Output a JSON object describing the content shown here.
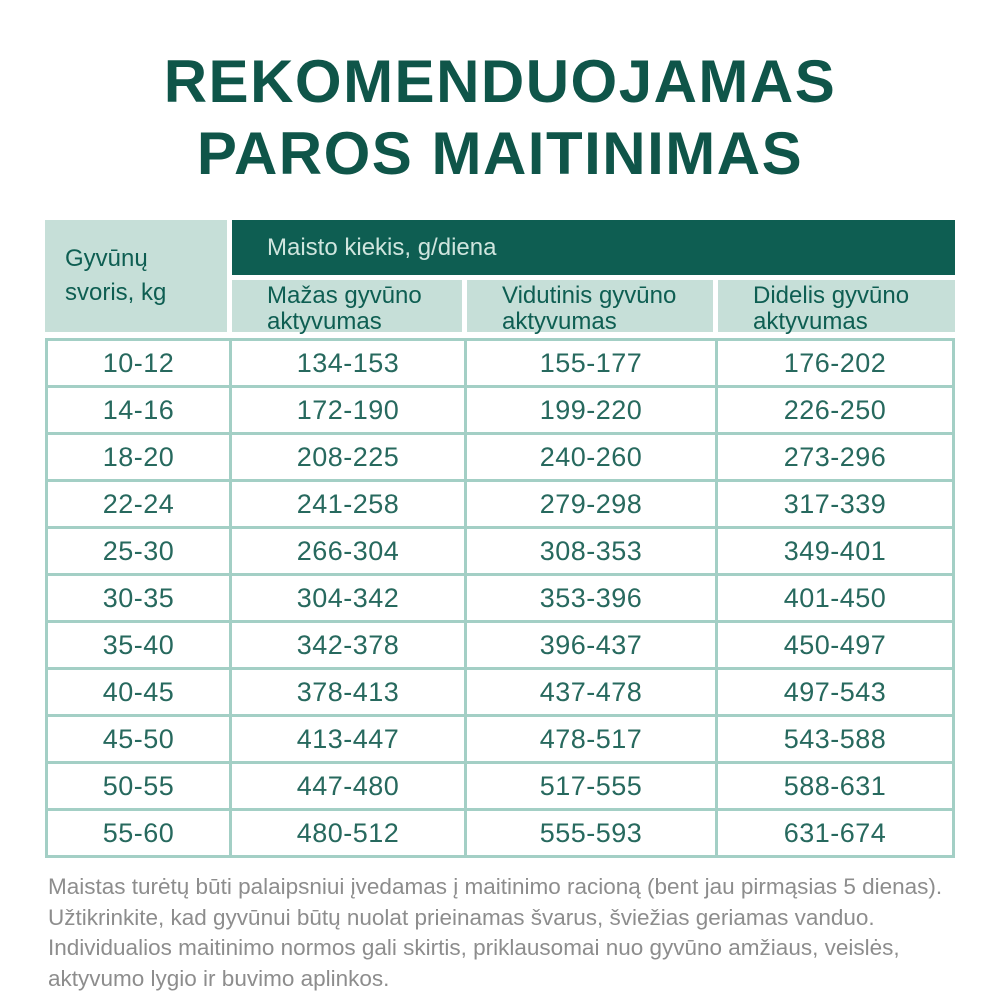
{
  "colors": {
    "dark_green": "#0e5e52",
    "title_green": "#0f5549",
    "light_green": "#c6dfd8",
    "border_teal": "#a3cfc5",
    "data_text_green": "#27695e",
    "group_header_text": "#cfe5de",
    "footer_gray": "#8d8d8d"
  },
  "title": {
    "line1": "REKOMENDUOJAMAS",
    "line2": "PAROS MAITINIMAS"
  },
  "table": {
    "weight_col_header": "Gyvūnų svoris, kg",
    "amount_group_header": "Maisto kiekis, g/diena",
    "activity_col_headers": [
      "Mažas gyvūno aktyvumas",
      "Vidutinis gyvūno aktyvumas",
      "Didelis gyvūno aktyvumas"
    ],
    "rows": [
      [
        "10-12",
        "134-153",
        "155-177",
        "176-202"
      ],
      [
        "14-16",
        "172-190",
        "199-220",
        "226-250"
      ],
      [
        "18-20",
        "208-225",
        "240-260",
        "273-296"
      ],
      [
        "22-24",
        "241-258",
        "279-298",
        "317-339"
      ],
      [
        "25-30",
        "266-304",
        "308-353",
        "349-401"
      ],
      [
        "30-35",
        "304-342",
        "353-396",
        "401-450"
      ],
      [
        "35-40",
        "342-378",
        "396-437",
        "450-497"
      ],
      [
        "40-45",
        "378-413",
        "437-478",
        "497-543"
      ],
      [
        "45-50",
        "413-447",
        "478-517",
        "543-588"
      ],
      [
        "50-55",
        "447-480",
        "517-555",
        "588-631"
      ],
      [
        "55-60",
        "480-512",
        "555-593",
        "631-674"
      ]
    ]
  },
  "footer": {
    "note": "Maistas turėtų būti palaipsniui įvedamas į maitinimo racioną (bent jau pirmąsias 5 dienas). Užtikrinkite, kad gyvūnui būtų nuolat prieinamas švarus, šviežias geriamas vanduo. Individualios maitinimo normos gali skirtis, priklausomai nuo gyvūno amžiaus, veislės, aktyvumo lygio ir buvimo aplinkos."
  }
}
